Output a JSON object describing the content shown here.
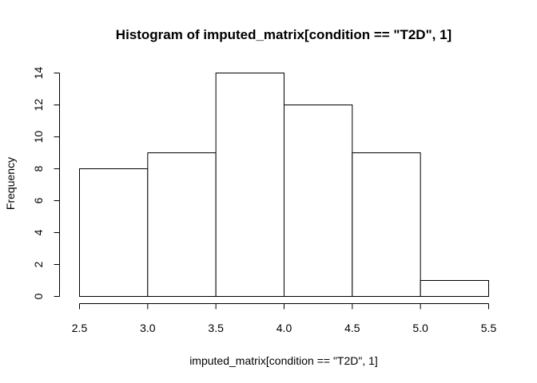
{
  "chart_data": {
    "type": "bar",
    "title": "Histogram of imputed_matrix[condition == \"T2D\", 1]",
    "xlabel": "imputed_matrix[condition == \"T2D\", 1]",
    "ylabel": "Frequency",
    "bins": [
      {
        "start": 2.5,
        "end": 3.0,
        "count": 8
      },
      {
        "start": 3.0,
        "end": 3.5,
        "count": 9
      },
      {
        "start": 3.5,
        "end": 4.0,
        "count": 14
      },
      {
        "start": 4.0,
        "end": 4.5,
        "count": 12
      },
      {
        "start": 4.5,
        "end": 5.0,
        "count": 9
      },
      {
        "start": 5.0,
        "end": 5.5,
        "count": 1
      }
    ],
    "xlim": [
      2.5,
      5.5
    ],
    "ylim": [
      0,
      14
    ],
    "x_ticks": [
      "2.5",
      "3.0",
      "3.5",
      "4.0",
      "4.5",
      "5.0",
      "5.5"
    ],
    "y_ticks": [
      "0",
      "2",
      "4",
      "6",
      "8",
      "10",
      "12",
      "14"
    ],
    "grid": false
  }
}
